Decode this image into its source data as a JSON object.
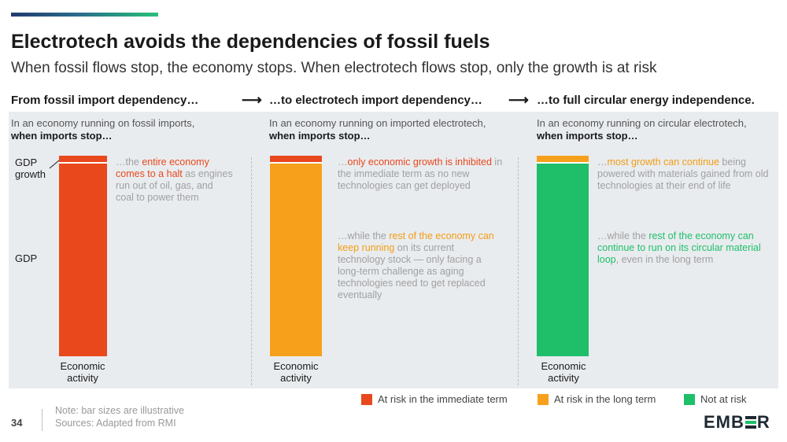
{
  "header": {
    "title": "Electrotech avoids the dependencies of fossil fuels",
    "subtitle": "When fossil flows stop, the economy stops.  When electrotech flows stop, only the growth is at risk"
  },
  "columns": [
    {
      "heading": "From fossil import dependency…",
      "intro_prefix": "In an economy running on fossil imports,",
      "intro_bold": "when imports stop…",
      "label_gdp_growth": "GDP growth",
      "label_gdp": "GDP",
      "econ_label": "Economic activity",
      "bar_top_color": "#e8481c",
      "bar_body_color": "#e8481c",
      "note1": {
        "pre": "…the ",
        "highlight": "entire economy comes to a halt",
        "post": " as engines run out of oil, gas, and coal to power them"
      }
    },
    {
      "heading": "…to electrotech import dependency…",
      "intro_prefix": "In an economy running on imported electrotech,",
      "intro_bold": "when imports stop…",
      "econ_label": "Economic activity",
      "bar_top_color": "#e8481c",
      "bar_body_color": "#f7a01b",
      "note1": {
        "pre": "…",
        "highlight": "only economic growth is inhibited",
        "post": " in the immediate term as no new technologies can get deployed"
      },
      "note2": {
        "pre": "…while the ",
        "highlight": "rest of the economy can keep running",
        "post": " on its current technology stock — only facing a long-term challenge as aging technologies need to get replaced eventually"
      }
    },
    {
      "heading": "…to full circular energy independence.",
      "intro_prefix": "In an economy running on circular electrotech,",
      "intro_bold": "when imports stop…",
      "econ_label": "Economic activity",
      "bar_top_color": "#f7a01b",
      "bar_body_color": "#1fbf6a",
      "note1": {
        "pre": "…",
        "highlight": "most growth can continue",
        "post": " being powered with materials gained from old technologies at their end of life"
      },
      "note2": {
        "pre": "…while the ",
        "highlight": "rest of the economy can continue to run on its circular material loop",
        "post": ", even in the long term"
      }
    }
  ],
  "legend": [
    {
      "label": "At risk in the immediate term",
      "color": "#e8481c"
    },
    {
      "label": "At risk in the long term",
      "color": "#f7a01b"
    },
    {
      "label": "Not at risk",
      "color": "#1fbf6a"
    }
  ],
  "footer": {
    "page_number": "34",
    "note": "Note: bar sizes are illustrative",
    "sources": "Sources: Adapted from RMI",
    "logo_left": "EMB",
    "logo_right": "R"
  }
}
